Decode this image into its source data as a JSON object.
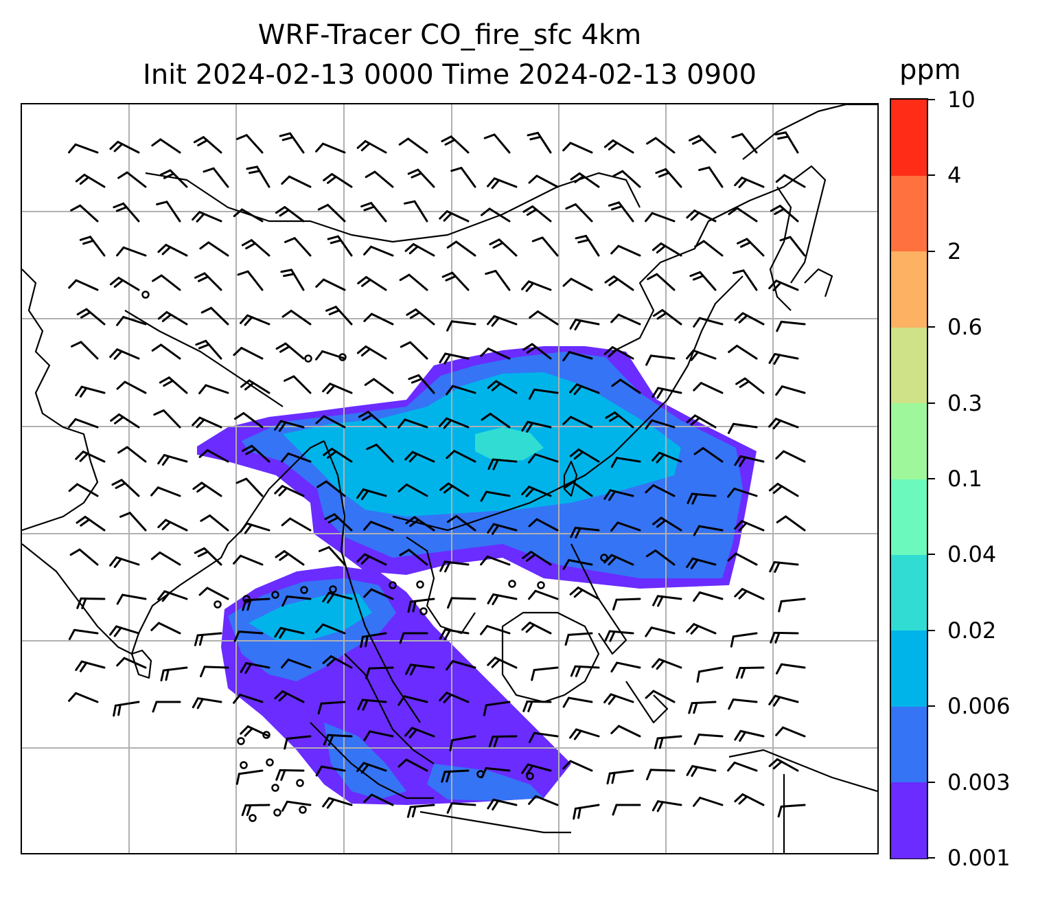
{
  "title": {
    "line1": "WRF-Tracer CO_fire_sfc 4km",
    "line2": "Init 2024-02-13 0000 Time 2024-02-13 0900"
  },
  "colorbar": {
    "unit": "ppm",
    "levels": [
      "0.001",
      "0.003",
      "0.006",
      "0.02",
      "0.04",
      "0.1",
      "0.3",
      "0.6",
      "2",
      "4",
      "10"
    ],
    "colors": [
      "#6a2cff",
      "#3574f5",
      "#00b4ea",
      "#31dcd3",
      "#6cf9bd",
      "#9ef89b",
      "#cfe287",
      "#fdb163",
      "#ff723f",
      "#ff2d18"
    ]
  },
  "map": {
    "gridline_color": "#b0b0b0",
    "coastline_color": "#000000",
    "plume_colors": {
      "outer": "#6a2cff",
      "mid": "#3574f5",
      "inner": "#00b4ea",
      "core": "#31dcd3"
    }
  }
}
